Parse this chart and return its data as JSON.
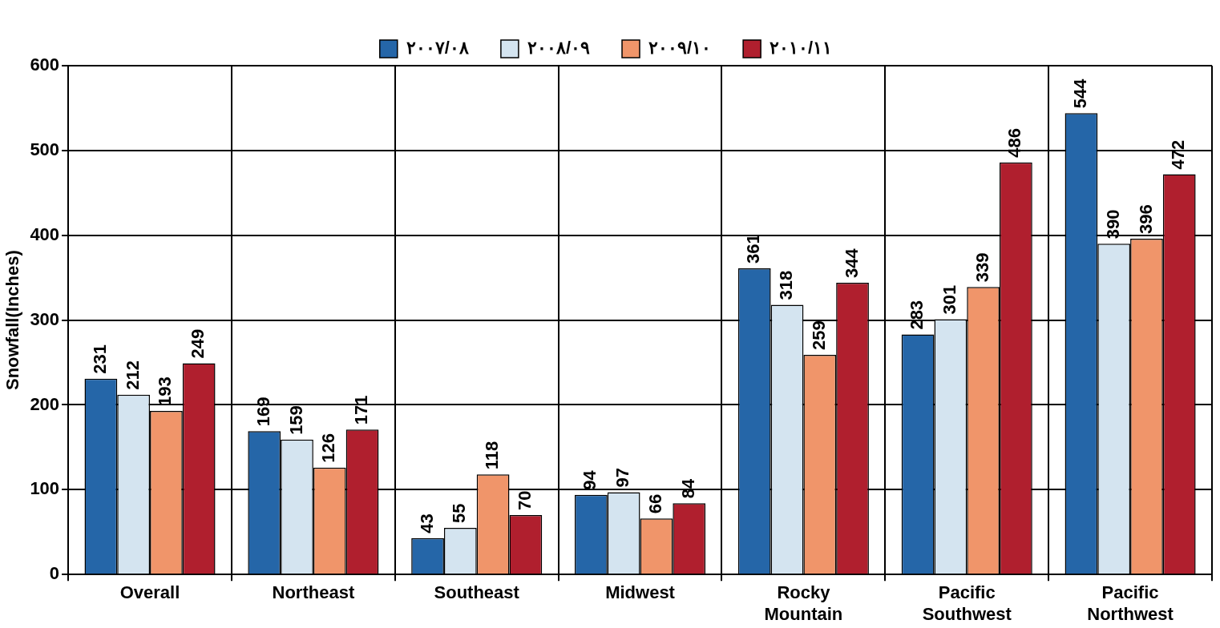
{
  "chart_data": {
    "type": "bar",
    "ylabel": "Snowfall(Inches)",
    "categories": [
      "Overall",
      "Northeast",
      "Southeast",
      "Midwest",
      "Rocky Mountain",
      "Pacific Southwest",
      "Pacific Northwest"
    ],
    "series": [
      {
        "name": "٢٠٠٧/٠٨",
        "color": "#2566a8",
        "values": [
          231,
          169,
          43,
          94,
          361,
          283,
          544
        ]
      },
      {
        "name": "٢٠٠٨/٠٩",
        "color": "#d4e4f0",
        "values": [
          212,
          159,
          55,
          97,
          318,
          301,
          390
        ]
      },
      {
        "name": "٢٠٠٩/١٠",
        "color": "#f0956a",
        "values": [
          193,
          126,
          118,
          66,
          259,
          339,
          396
        ]
      },
      {
        "name": "٢٠١٠/١١",
        "color": "#b01f2e",
        "values": [
          249,
          171,
          70,
          84,
          344,
          486,
          472
        ]
      }
    ],
    "ylim": [
      0,
      600
    ],
    "yticks": [
      0,
      100,
      200,
      300,
      400,
      500,
      600
    ],
    "grid": true,
    "legend": "top",
    "data_labels": true
  }
}
